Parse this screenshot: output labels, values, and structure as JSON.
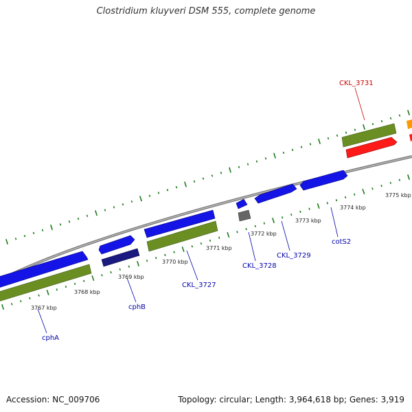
{
  "title": "Clostridium kluyveri DSM 555, complete genome",
  "footer": {
    "accession": "Accession: NC_009706",
    "summary": "Topology: circular; Length: 3,964,618 bp; Genes: 3,919"
  },
  "colors": {
    "backbone": "#8c8c8c",
    "tick": "#1a7a1a",
    "cds_forward": "#1010e0",
    "cds_reverse": "#555555",
    "gene_track": "#6b8e23",
    "highlight": "#ff0000",
    "neighbor": "#ff9900",
    "label_normal": "#0000aa",
    "label_highlight": "#cc0000"
  },
  "scale_labels": [
    "3767 kbp",
    "3768 kbp",
    "3769 kbp",
    "3770 kbp",
    "3771 kbp",
    "3772 kbp",
    "3773 kbp",
    "3774 kbp",
    "3775 kbp"
  ],
  "gene_labels": [
    {
      "text": "CKL_3731",
      "highlight": true
    },
    {
      "text": "cphA",
      "highlight": false
    },
    {
      "text": "cphB",
      "highlight": false
    },
    {
      "text": "CKL_3727",
      "highlight": false
    },
    {
      "text": "CKL_3728",
      "highlight": false
    },
    {
      "text": "CKL_3729",
      "highlight": false
    },
    {
      "text": "cotS2",
      "highlight": false
    }
  ]
}
